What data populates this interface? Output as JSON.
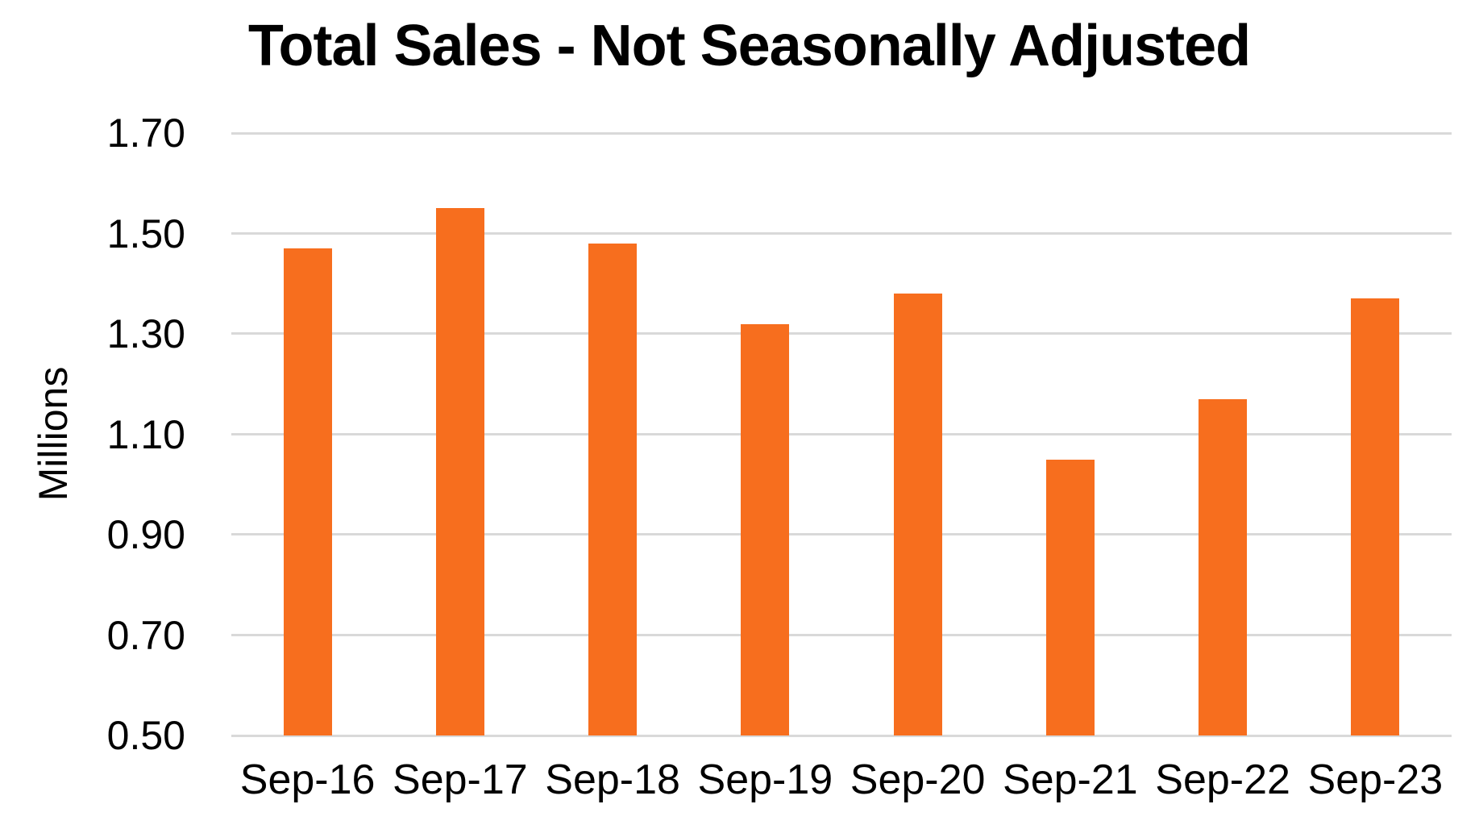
{
  "chart_data": {
    "type": "bar",
    "title": "Total Sales - Not Seasonally Adjusted",
    "ylabel": "Millions",
    "xlabel": "",
    "categories": [
      "Sep-16",
      "Sep-17",
      "Sep-18",
      "Sep-19",
      "Sep-20",
      "Sep-21",
      "Sep-22",
      "Sep-23"
    ],
    "values": [
      1.47,
      1.55,
      1.48,
      1.32,
      1.38,
      1.05,
      1.17,
      1.37
    ],
    "ylim": [
      0.5,
      1.7
    ],
    "ytick_step": 0.2,
    "ytick_labels": [
      "1.70",
      "1.50",
      "1.30",
      "1.10",
      "0.90",
      "0.70",
      "0.50"
    ],
    "grid": true,
    "legend": "none",
    "colors": {
      "bar": "#F76E1E",
      "gridline": "#D9D9D9",
      "text": "#000000",
      "background": "#FFFFFF"
    }
  }
}
